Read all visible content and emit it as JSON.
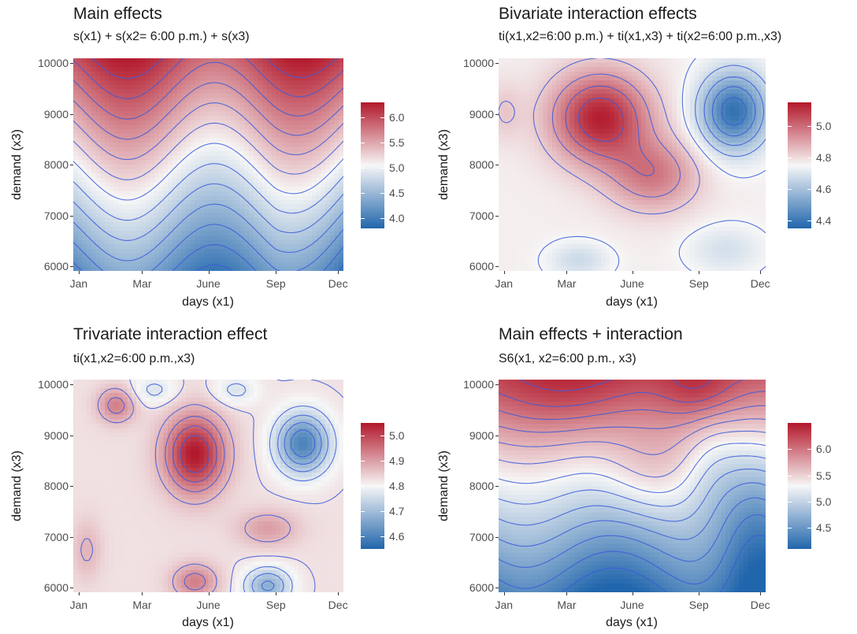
{
  "colors": {
    "low": "#2166ac",
    "mid": "#f7f7f7",
    "high": "#b2182b",
    "contour": "#3b5bdb",
    "panel_bg": "#ebebeb"
  },
  "chart_data": [
    {
      "type": "heatmap",
      "title": "Main effects",
      "subtitle": "s(x1) + s(x2= 6:00 p.m.) + s(x3)",
      "xlabel": "days (x1)",
      "ylabel": "demand (x3)",
      "xticks": [
        "Jan",
        "Mar",
        "June",
        "Sep",
        "Dec"
      ],
      "yticks": [
        "6000",
        "7000",
        "8000",
        "9000",
        "10000"
      ],
      "ylim": [
        6000,
        10000
      ],
      "legend_ticks": [
        "6.0",
        "5.5",
        "5.0",
        "4.5",
        "4.0"
      ],
      "value_range": [
        3.8,
        6.3
      ],
      "pattern": "main",
      "contours": 14
    },
    {
      "type": "heatmap",
      "title": "Bivariate interaction effects",
      "subtitle": "ti(x1,x2=6:00 p.m.) + ti(x1,x3) + ti(x2=6:00 p.m.,x3)",
      "xlabel": "days (x1)",
      "ylabel": "demand (x3)",
      "xticks": [
        "Jan",
        "Mar",
        "June",
        "Sep",
        "Dec"
      ],
      "yticks": [
        "6000",
        "7000",
        "8000",
        "9000",
        "10000"
      ],
      "ylim": [
        6000,
        10000
      ],
      "legend_ticks": [
        "5.0",
        "4.8",
        "4.6",
        "4.4"
      ],
      "value_range": [
        4.35,
        5.15
      ],
      "pattern": "bivariate",
      "contours": 10
    },
    {
      "type": "heatmap",
      "title": "Trivariate interaction effect",
      "subtitle": "ti(x1,x2=6:00 p.m.,x3)",
      "xlabel": "days (x1)",
      "ylabel": "demand (x3)",
      "xticks": [
        "Jan",
        "Mar",
        "June",
        "Sep",
        "Dec"
      ],
      "yticks": [
        "6000",
        "7000",
        "8000",
        "9000",
        "10000"
      ],
      "ylim": [
        6000,
        10000
      ],
      "legend_ticks": [
        "5.0",
        "4.9",
        "4.8",
        "4.7",
        "4.6"
      ],
      "value_range": [
        4.55,
        5.05
      ],
      "pattern": "trivariate",
      "contours": 11
    },
    {
      "type": "heatmap",
      "title": "Main effects + interaction",
      "subtitle": "S6(x1, x2=6:00 p.m., x3)",
      "xlabel": "days (x1)",
      "ylabel": "demand (x3)",
      "xticks": [
        "Jan",
        "Mar",
        "June",
        "Sep",
        "Dec"
      ],
      "yticks": [
        "6000",
        "7000",
        "8000",
        "9000",
        "10000"
      ],
      "ylim": [
        6000,
        10000
      ],
      "legend_ticks": [
        "6.0",
        "5.5",
        "5.0",
        "4.5"
      ],
      "value_range": [
        4.1,
        6.5
      ],
      "pattern": "combined",
      "contours": 14
    }
  ]
}
